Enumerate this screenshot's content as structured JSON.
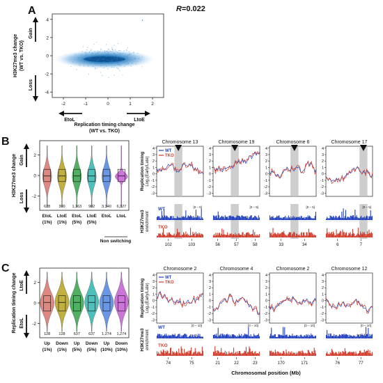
{
  "panel_a": {
    "letter": "A",
    "r_label": "R",
    "r_value": "=0.022",
    "ylabel_line1": "H3K27me3 change",
    "ylabel_line2": "(WT vs. TKO)",
    "gain": "Gain",
    "loss": "Loss",
    "xlabel_line1": "Replication timing change",
    "xlabel_line2": "(WT vs. TKO)",
    "etol": "EtoL",
    "ltoe": "LtoE",
    "chart_data": {
      "type": "scatter",
      "x_ticks": [
        "-2",
        "-1",
        "0",
        "1",
        "2"
      ],
      "y_ticks": [
        "4",
        "2",
        "0",
        "-2",
        "-4"
      ],
      "xlim": [
        -2.5,
        2.5
      ],
      "ylim": [
        -4.6,
        4.6
      ]
    }
  },
  "panel_b": {
    "letter": "B",
    "ylabel": "H3K27me3 change",
    "gain": "Gain",
    "loss": "Loss",
    "y_ticks": [
      "2",
      "0",
      "-2"
    ],
    "groups": [
      {
        "name": "EtoL",
        "sub": "(1%)",
        "n": "628",
        "color": "#d9746c"
      },
      {
        "name": "LtoE",
        "sub": "(1%)",
        "n": "300",
        "color": "#b7a21e"
      },
      {
        "name": "EtoL",
        "sub": "(5%)",
        "n": "1,163",
        "color": "#35a34a"
      },
      {
        "name": "LtoE",
        "sub": "(5%)",
        "n": "902",
        "color": "#2fb6b0"
      },
      {
        "name": "EtoL",
        "sub": "",
        "n": "3,340",
        "color": "#4f86e0"
      },
      {
        "name": "LtoL",
        "sub": "",
        "n": "6,327",
        "color": "#c25fd1"
      }
    ],
    "non_switching": "Non switching",
    "tracks": {
      "rt_ylabel": "Replication timing",
      "rt_ylabel2": "Log₂(Early/Late)",
      "chip_ylabel": "H3K27me3",
      "chip_ylabel2": "enrichment",
      "wt": "WT",
      "tko": "TKO",
      "range": "[0 – 5]",
      "y_ticks": [
        "4",
        "3",
        "2",
        "1",
        "0",
        "-1",
        "-2",
        "-3"
      ],
      "chromosomes": [
        {
          "title": "Chromosome 13",
          "ticks": [
            "102",
            "103"
          ]
        },
        {
          "title": "Chromosome 19",
          "ticks": [
            "56",
            "57",
            "58"
          ]
        },
        {
          "title": "Chromosome 6",
          "ticks": [
            "33",
            "34"
          ]
        },
        {
          "title": "Chromosome 17",
          "ticks": [
            "6",
            "7"
          ]
        }
      ]
    }
  },
  "panel_c": {
    "letter": "C",
    "ylabel": "Replication timing change",
    "ltoe": "LtoE",
    "etol": "EtoL",
    "y_ticks": [
      "2",
      "0",
      "-2"
    ],
    "groups": [
      {
        "name": "Up",
        "sub": "(1%)",
        "n": "128",
        "color": "#d9746c"
      },
      {
        "name": "Down",
        "sub": "(1%)",
        "n": "128",
        "color": "#b7a21e"
      },
      {
        "name": "Up",
        "sub": "(5%)",
        "n": "637",
        "color": "#35a34a"
      },
      {
        "name": "Down",
        "sub": "(5%)",
        "n": "637",
        "color": "#2fb6b0"
      },
      {
        "name": "Up",
        "sub": "(10%)",
        "n": "1,274",
        "color": "#4f86e0"
      },
      {
        "name": "Down",
        "sub": "(10%)",
        "n": "1,274",
        "color": "#c25fd1"
      }
    ],
    "tracks": {
      "rt_ylabel": "Replication timing",
      "rt_ylabel2": "Log₂(Early/Late)",
      "chip_ylabel": "H3K27me3",
      "chip_ylabel2": "enrichment",
      "wt": "WT",
      "tko": "TKO",
      "range": "[0 – 10]",
      "y_ticks": [
        "4",
        "3",
        "2",
        "1",
        "0",
        "-1",
        "-2",
        "-3"
      ],
      "chromosomes": [
        {
          "title": "Chromosome 2",
          "ticks": [
            "74",
            "75"
          ]
        },
        {
          "title": "Chromosome 4",
          "ticks": [
            "21",
            "22",
            "23"
          ]
        },
        {
          "title": "Chromosome 2",
          "ticks": [
            "170",
            "171"
          ]
        },
        {
          "title": "Chromosome 12",
          "ticks": [
            "76",
            "77"
          ]
        }
      ],
      "xlabel": "Chromosomal position (Mb)"
    }
  },
  "colors": {
    "wt": "#1f3fbf",
    "tko": "#d13a2a",
    "scatter": "#2a7fc0"
  }
}
